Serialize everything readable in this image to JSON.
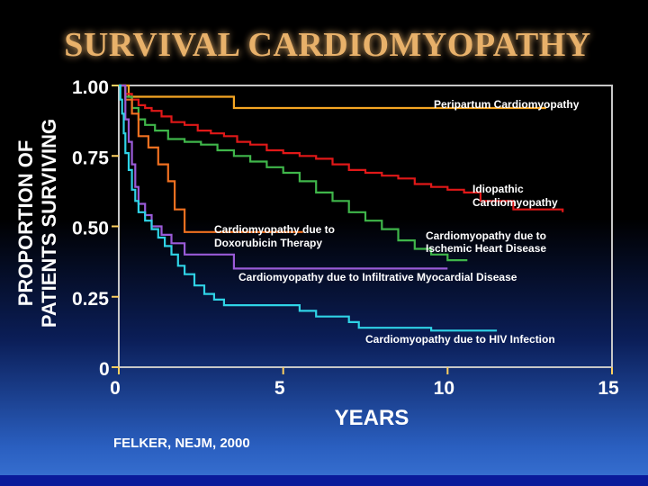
{
  "colors": {
    "title": "#e8b16a",
    "axis_text": "#ffffff",
    "ticks": "#ffd060",
    "frame": "#c7c7c7",
    "background_top": "#000000",
    "background_bottom": "#3a73d4"
  },
  "chart_data": {
    "type": "line",
    "title": "SURVIVAL CARDIOMYOPATHY",
    "xlabel": "YEARS",
    "ylabel": [
      "PROPORTION OF",
      "PATIENTS SURVIVING"
    ],
    "xlim": [
      0,
      15
    ],
    "ylim": [
      0,
      1
    ],
    "x_ticks": [
      "0",
      "5",
      "10",
      "15"
    ],
    "y_ticks": [
      "0",
      "0.25",
      "0.50",
      "0.75",
      "1.00"
    ],
    "grid": false,
    "series": [
      {
        "name": "Peripartum Cardiomyopathy",
        "color": "#f5a623",
        "label_lines": [
          "Peripartum Cardiomyopathy"
        ],
        "x": [
          0,
          0.3,
          0.3,
          3.5,
          3.5,
          13.0
        ],
        "y": [
          1.0,
          1.0,
          0.96,
          0.96,
          0.92,
          0.92
        ]
      },
      {
        "name": "Idiopathic Cardiomyopathy",
        "color": "#e01818",
        "label_lines": [
          "Idiopathic",
          "Cardiomyopathy"
        ],
        "x": [
          0,
          0.2,
          0.4,
          0.6,
          0.8,
          1.0,
          1.3,
          1.6,
          2.0,
          2.4,
          2.8,
          3.2,
          3.6,
          4.0,
          4.5,
          5.0,
          5.5,
          6.0,
          6.5,
          7.0,
          7.5,
          8.0,
          8.5,
          9.0,
          9.5,
          10.0,
          10.5,
          11.0,
          12.0,
          13.5
        ],
        "y": [
          1.0,
          0.97,
          0.95,
          0.93,
          0.92,
          0.91,
          0.89,
          0.87,
          0.86,
          0.84,
          0.83,
          0.82,
          0.8,
          0.79,
          0.77,
          0.76,
          0.75,
          0.74,
          0.72,
          0.7,
          0.69,
          0.68,
          0.67,
          0.65,
          0.64,
          0.63,
          0.62,
          0.59,
          0.56,
          0.55
        ]
      },
      {
        "name": "Cardiomyopathy due to Ischemic Heart Disease",
        "color": "#3fb64a",
        "label_lines": [
          "Cardiomyopathy due to",
          "Ischemic Heart Disease"
        ],
        "x": [
          0,
          0.2,
          0.4,
          0.6,
          0.8,
          1.1,
          1.5,
          2.0,
          2.5,
          3.0,
          3.5,
          4.0,
          4.5,
          5.0,
          5.5,
          6.0,
          6.5,
          7.0,
          7.5,
          8.0,
          8.5,
          9.0,
          9.5,
          10.0,
          10.6
        ],
        "y": [
          1.0,
          0.96,
          0.92,
          0.88,
          0.86,
          0.84,
          0.81,
          0.8,
          0.79,
          0.77,
          0.75,
          0.73,
          0.71,
          0.69,
          0.66,
          0.62,
          0.59,
          0.55,
          0.52,
          0.49,
          0.45,
          0.42,
          0.4,
          0.38,
          0.38
        ]
      },
      {
        "name": "Cardiomyopathy due to Doxorubicin Therapy",
        "color": "#f07020",
        "label_lines": [
          "Cardiomyopathy due to",
          "Doxorubicin Therapy"
        ],
        "x": [
          0,
          0.2,
          0.4,
          0.6,
          0.9,
          1.2,
          1.5,
          1.7,
          2.0,
          5.6
        ],
        "y": [
          1.0,
          0.95,
          0.9,
          0.82,
          0.78,
          0.72,
          0.66,
          0.56,
          0.48,
          0.48
        ]
      },
      {
        "name": "Cardiomyopathy due to Infiltrative Myocardial Disease",
        "color": "#9a5bd8",
        "label_lines": [
          "Cardiomyopathy due to Infiltrative Myocardial Disease"
        ],
        "x": [
          0,
          0.2,
          0.3,
          0.4,
          0.5,
          0.6,
          0.8,
          1.0,
          1.3,
          1.6,
          2.0,
          3.5,
          10.0
        ],
        "y": [
          1.0,
          0.88,
          0.8,
          0.72,
          0.64,
          0.58,
          0.54,
          0.5,
          0.47,
          0.44,
          0.4,
          0.35,
          0.35
        ]
      },
      {
        "name": "Cardiomyopathy due to HIV Infection",
        "color": "#2fd3e6",
        "label_lines": [
          "Cardiomyopathy due to HIV Infection"
        ],
        "x": [
          0,
          0.05,
          0.1,
          0.15,
          0.2,
          0.3,
          0.4,
          0.5,
          0.6,
          0.8,
          1.0,
          1.2,
          1.4,
          1.6,
          1.8,
          2.0,
          2.3,
          2.6,
          2.9,
          3.2,
          4.0,
          5.5,
          6.0,
          7.0,
          7.3,
          8.5,
          9.5,
          10.0,
          11.5
        ],
        "y": [
          1.0,
          0.95,
          0.9,
          0.83,
          0.76,
          0.7,
          0.63,
          0.59,
          0.55,
          0.52,
          0.49,
          0.46,
          0.43,
          0.4,
          0.36,
          0.33,
          0.29,
          0.26,
          0.24,
          0.22,
          0.22,
          0.2,
          0.18,
          0.16,
          0.14,
          0.14,
          0.13,
          0.13,
          0.13
        ]
      }
    ]
  },
  "citation": "FELKER, NEJM, 2000"
}
